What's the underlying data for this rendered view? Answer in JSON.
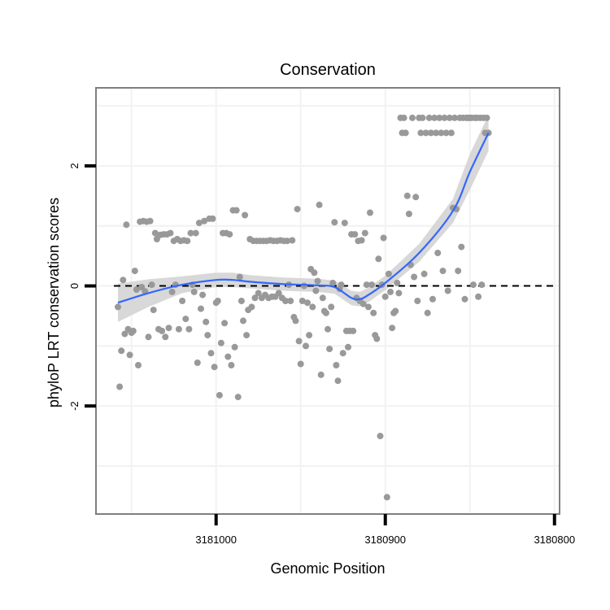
{
  "chart_data": {
    "type": "scatter",
    "title": "Conservation",
    "xlabel": "Genomic Position",
    "ylabel": "phyloP LRT conservation scores",
    "x_reversed": true,
    "xlim": [
      3181071,
      3180797
    ],
    "ylim": [
      -3.8,
      3.3
    ],
    "x_ticks": [
      3181000,
      3180900,
      3180800
    ],
    "x_tick_labels": [
      "3181000",
      "3180900",
      "3180800"
    ],
    "y_ticks": [
      -2,
      0,
      2
    ],
    "y_tick_labels": [
      "-2",
      "0",
      "2"
    ],
    "grid": true,
    "reference_line": {
      "y": 0,
      "style": "dashed"
    },
    "colors": {
      "points": "#999999",
      "smooth": "#3366ff",
      "ribbon": "#d4d4d4",
      "frame": "#7f7f7f",
      "grid": "#f2f2f2"
    },
    "points": [
      [
        3181058,
        -0.35
      ],
      [
        3181057,
        -1.68
      ],
      [
        3181056,
        -1.08
      ],
      [
        3181055,
        0.1
      ],
      [
        3181054,
        -0.8
      ],
      [
        3181053,
        1.02
      ],
      [
        3181052,
        -0.72
      ],
      [
        3181051,
        -1.15
      ],
      [
        3181050,
        -0.78
      ],
      [
        3181049,
        -0.75
      ],
      [
        3181048,
        0.25
      ],
      [
        3181047,
        -0.06
      ],
      [
        3181046,
        -1.32
      ],
      [
        3181045,
        1.07
      ],
      [
        3181044,
        -0.02
      ],
      [
        3181043,
        1.08
      ],
      [
        3181042,
        -0.09
      ],
      [
        3181041,
        1.07
      ],
      [
        3181040,
        -0.85
      ],
      [
        3181039,
        1.08
      ],
      [
        3181038,
        0.02
      ],
      [
        3181037,
        -0.4
      ],
      [
        3181036,
        0.88
      ],
      [
        3181035,
        0.78
      ],
      [
        3181034,
        -0.72
      ],
      [
        3181033,
        0.85
      ],
      [
        3181032,
        -0.75
      ],
      [
        3181031,
        0.86
      ],
      [
        3181030,
        -0.85
      ],
      [
        3181029,
        0.86
      ],
      [
        3181028,
        -0.7
      ],
      [
        3181027,
        0.88
      ],
      [
        3181026,
        -0.1
      ],
      [
        3181025,
        0.75
      ],
      [
        3181024,
        0.02
      ],
      [
        3181023,
        0.78
      ],
      [
        3181022,
        -0.72
      ],
      [
        3181021,
        0.75
      ],
      [
        3181020,
        -0.25
      ],
      [
        3181019,
        0.76
      ],
      [
        3181018,
        -0.55
      ],
      [
        3181017,
        0.75
      ],
      [
        3181016,
        -0.72
      ],
      [
        3181015,
        0.88
      ],
      [
        3181014,
        0.02
      ],
      [
        3181013,
        -0.1
      ],
      [
        3181012,
        0.88
      ],
      [
        3181011,
        -1.28
      ],
      [
        3181010,
        1.05
      ],
      [
        3181009,
        -0.38
      ],
      [
        3181008,
        -0.15
      ],
      [
        3181007,
        1.08
      ],
      [
        3181006,
        -0.6
      ],
      [
        3181005,
        -0.82
      ],
      [
        3181004,
        1.12
      ],
      [
        3181003,
        -1.12
      ],
      [
        3181002,
        1.12
      ],
      [
        3181001,
        -1.35
      ],
      [
        3181000,
        -0.28
      ],
      [
        3180999,
        -0.25
      ],
      [
        3180998,
        -1.82
      ],
      [
        3180997,
        -0.95
      ],
      [
        3180996,
        0.88
      ],
      [
        3180995,
        -0.62
      ],
      [
        3180994,
        0.88
      ],
      [
        3180993,
        -1.18
      ],
      [
        3180992,
        0.86
      ],
      [
        3180991,
        -1.32
      ],
      [
        3180990,
        1.26
      ],
      [
        3180989,
        -1.02
      ],
      [
        3180988,
        1.26
      ],
      [
        3180987,
        -1.85
      ],
      [
        3180986,
        0.15
      ],
      [
        3180985,
        -0.25
      ],
      [
        3180984,
        -0.58
      ],
      [
        3180983,
        1.18
      ],
      [
        3180982,
        -0.82
      ],
      [
        3180981,
        -0.4
      ],
      [
        3180980,
        0.78
      ],
      [
        3180979,
        -0.35
      ],
      [
        3180978,
        0.75
      ],
      [
        3180977,
        -0.2
      ],
      [
        3180976,
        0.75
      ],
      [
        3180975,
        -0.12
      ],
      [
        3180974,
        0.75
      ],
      [
        3180973,
        -0.2
      ],
      [
        3180972,
        0.75
      ],
      [
        3180971,
        -0.15
      ],
      [
        3180970,
        0.75
      ],
      [
        3180969,
        -0.2
      ],
      [
        3180968,
        0.76
      ],
      [
        3180967,
        -0.18
      ],
      [
        3180966,
        0.75
      ],
      [
        3180965,
        -0.18
      ],
      [
        3180964,
        0.75
      ],
      [
        3180963,
        -0.12
      ],
      [
        3180962,
        0.76
      ],
      [
        3180961,
        -0.2
      ],
      [
        3180960,
        0.75
      ],
      [
        3180959,
        -0.25
      ],
      [
        3180958,
        0.75
      ],
      [
        3180957,
        0.02
      ],
      [
        3180956,
        -0.25
      ],
      [
        3180955,
        0.76
      ],
      [
        3180954,
        -0.52
      ],
      [
        3180953,
        -0.58
      ],
      [
        3180952,
        1.28
      ],
      [
        3180951,
        -0.92
      ],
      [
        3180950,
        -1.3
      ],
      [
        3180949,
        -0.25
      ],
      [
        3180948,
        0.0
      ],
      [
        3180947,
        -1.0
      ],
      [
        3180946,
        -0.28
      ],
      [
        3180945,
        -0.82
      ],
      [
        3180944,
        0.28
      ],
      [
        3180943,
        -0.35
      ],
      [
        3180942,
        0.22
      ],
      [
        3180941,
        -0.08
      ],
      [
        3180940,
        0.08
      ],
      [
        3180939,
        1.35
      ],
      [
        3180938,
        -1.48
      ],
      [
        3180937,
        -0.2
      ],
      [
        3180936,
        -0.42
      ],
      [
        3180935,
        -0.45
      ],
      [
        3180934,
        -0.72
      ],
      [
        3180933,
        -1.05
      ],
      [
        3180932,
        -0.35
      ],
      [
        3180931,
        0.05
      ],
      [
        3180930,
        1.06
      ],
      [
        3180929,
        -1.32
      ],
      [
        3180928,
        -1.58
      ],
      [
        3180927,
        -0.05
      ],
      [
        3180926,
        0.02
      ],
      [
        3180925,
        -1.12
      ],
      [
        3180924,
        1.05
      ],
      [
        3180923,
        -0.75
      ],
      [
        3180922,
        -1.02
      ],
      [
        3180921,
        -0.75
      ],
      [
        3180920,
        0.86
      ],
      [
        3180919,
        -0.75
      ],
      [
        3180918,
        0.86
      ],
      [
        3180917,
        -0.2
      ],
      [
        3180916,
        0.75
      ],
      [
        3180915,
        -0.25
      ],
      [
        3180914,
        0.76
      ],
      [
        3180913,
        -0.3
      ],
      [
        3180912,
        0.88
      ],
      [
        3180911,
        0.02
      ],
      [
        3180910,
        -0.35
      ],
      [
        3180909,
        1.22
      ],
      [
        3180908,
        0.02
      ],
      [
        3180907,
        -0.45
      ],
      [
        3180906,
        -0.82
      ],
      [
        3180905,
        -0.88
      ],
      [
        3180904,
        0.45
      ],
      [
        3180903,
        -2.5
      ],
      [
        3180902,
        0.02
      ],
      [
        3180901,
        0.8
      ],
      [
        3180900,
        -0.18
      ],
      [
        3180899,
        -3.52
      ],
      [
        3180898,
        0.2
      ],
      [
        3180897,
        -0.1
      ],
      [
        3180896,
        -0.7
      ],
      [
        3180895,
        -0.45
      ],
      [
        3180894,
        -0.42
      ],
      [
        3180893,
        0.05
      ],
      [
        3180892,
        -0.12
      ],
      [
        3180891,
        2.8
      ],
      [
        3180890,
        2.55
      ],
      [
        3180889,
        2.8
      ],
      [
        3180888,
        2.55
      ],
      [
        3180887,
        1.5
      ],
      [
        3180886,
        1.2
      ],
      [
        3180885,
        0.35
      ],
      [
        3180884,
        2.8
      ],
      [
        3180883,
        0.15
      ],
      [
        3180882,
        1.48
      ],
      [
        3180881,
        -0.25
      ],
      [
        3180880,
        2.8
      ],
      [
        3180879,
        2.55
      ],
      [
        3180878,
        2.8
      ],
      [
        3180877,
        0.2
      ],
      [
        3180876,
        2.55
      ],
      [
        3180875,
        -0.45
      ],
      [
        3180874,
        2.8
      ],
      [
        3180873,
        2.55
      ],
      [
        3180872,
        -0.22
      ],
      [
        3180871,
        2.8
      ],
      [
        3180870,
        2.55
      ],
      [
        3180869,
        0.55
      ],
      [
        3180868,
        2.8
      ],
      [
        3180867,
        2.55
      ],
      [
        3180866,
        0.25
      ],
      [
        3180865,
        2.8
      ],
      [
        3180864,
        2.55
      ],
      [
        3180863,
        -0.08
      ],
      [
        3180862,
        2.8
      ],
      [
        3180861,
        2.55
      ],
      [
        3180860,
        1.3
      ],
      [
        3180859,
        2.8
      ],
      [
        3180858,
        1.28
      ],
      [
        3180857,
        0.25
      ],
      [
        3180856,
        2.8
      ],
      [
        3180855,
        0.65
      ],
      [
        3180854,
        2.8
      ],
      [
        3180853,
        -0.22
      ],
      [
        3180852,
        2.8
      ],
      [
        3180851,
        2.8
      ],
      [
        3180850,
        2.8
      ],
      [
        3180849,
        2.8
      ],
      [
        3180848,
        0.02
      ],
      [
        3180847,
        2.8
      ],
      [
        3180846,
        2.8
      ],
      [
        3180845,
        -0.18
      ],
      [
        3180844,
        2.8
      ],
      [
        3180843,
        0.02
      ],
      [
        3180842,
        2.8
      ],
      [
        3180841,
        2.55
      ],
      [
        3180840,
        2.8
      ],
      [
        3180839,
        2.55
      ]
    ],
    "smooth_line": {
      "x": [
        3181058,
        3181040,
        3181020,
        3181000,
        3180990,
        3180980,
        3180960,
        3180940,
        3180930,
        3180920,
        3180915,
        3180910,
        3180900,
        3180880,
        3180860,
        3180850,
        3180839
      ],
      "y": [
        -0.28,
        -0.12,
        0.02,
        0.1,
        0.1,
        0.07,
        0.03,
        0.01,
        -0.02,
        -0.2,
        -0.22,
        -0.15,
        0.05,
        0.55,
        1.25,
        1.9,
        2.55
      ]
    },
    "ribbon": {
      "x": [
        3181058,
        3181040,
        3181020,
        3181000,
        3180990,
        3180980,
        3180960,
        3180940,
        3180930,
        3180920,
        3180915,
        3180910,
        3180900,
        3180880,
        3180860,
        3180850,
        3180839
      ],
      "lower": [
        -0.6,
        -0.35,
        -0.12,
        -0.02,
        -0.02,
        -0.04,
        -0.08,
        -0.1,
        -0.13,
        -0.32,
        -0.34,
        -0.27,
        -0.07,
        0.4,
        1.05,
        1.6,
        2.25
      ],
      "upper": [
        0.04,
        0.11,
        0.16,
        0.22,
        0.22,
        0.18,
        0.14,
        0.12,
        0.09,
        -0.08,
        -0.1,
        -0.03,
        0.17,
        0.7,
        1.45,
        2.2,
        2.85
      ]
    }
  }
}
